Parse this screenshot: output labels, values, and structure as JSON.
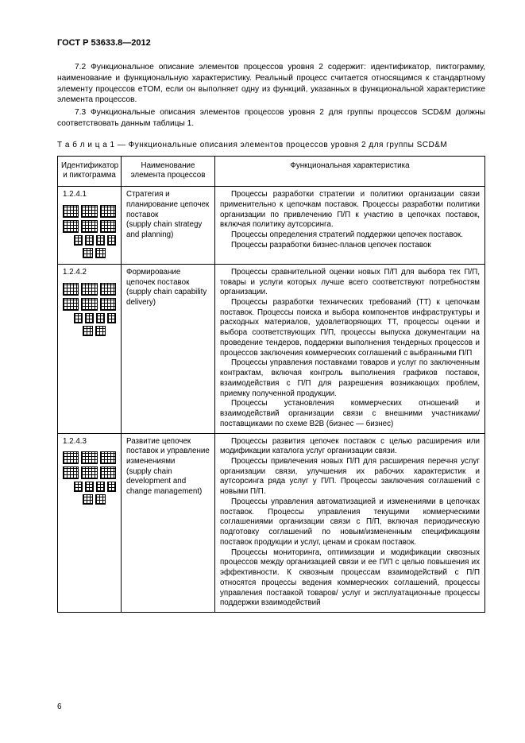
{
  "header": {
    "standard_code": "ГОСТ Р 53633.8—2012"
  },
  "paragraphs": {
    "p72": "7.2 Функциональное описание элементов процессов уровня 2 содержит: идентификатор, пиктограмму, наименование и функциональную характеристику. Реальный процесс считается относящимся к стандартному элементу процессов eTOM, если он выполняет одну из функций, указанных в функциональной характеристике элемента процессов.",
    "p73": "7.3 Функциональные описания элементов процессов уровня 2 для группы процессов SCD&M должны соответствовать данным таблицы 1."
  },
  "table": {
    "caption": "Т а б л и ц а  1 — Функциональные описания элементов процессов уровня 2 для группы SCD&M",
    "headers": {
      "col1": "Идентификатор и пиктограмма",
      "col2": "Наименование элемента процессов",
      "col3": "Функциональная характеристика"
    },
    "rows": [
      {
        "id": "1.2.4.1",
        "name": "Стратегия и планирование цепочек поставок\n(supply chain strategy and planning)",
        "desc": [
          "Процессы разработки стратегии и политики организации связи применительно к цепочкам поставок. Процессы разработки политики организации по привлечению П/П к участию в цепочках поставок, включая политику аутсорсинга.",
          "Процессы определения стратегий поддержки цепочек поставок.",
          "Процессы разработки бизнес-планов цепочек поставок"
        ]
      },
      {
        "id": "1.2.4.2",
        "name": "Формирование цепочек поставок\n(supply chain capability delivery)",
        "desc": [
          "Процессы сравнительной оценки новых П/П для выбора тех П/П, товары и услуги которых лучше всего соответствуют потребностям организации.",
          "Процессы разработки технических требований (ТТ) к цепочкам поставок. Процессы поиска и выбора компонентов инфраструктуры и расходных материалов, удовлетворяющих ТТ, процессы оценки и выбора соответствующих П/П, процессы выпуска документации на проведение тендеров, поддержки выполнения тендерных процессов и процессов заключения коммерческих соглашений с выбранными П/П",
          "Процессы управления поставками товаров и услуг по заключенным контрактам, включая контроль выполнения графиков поставок, взаимодействия с П/П для разрешения возникающих проблем, приемку полученной продукции.",
          "Процессы установления коммерческих отношений и взаимодействий организации связи с внешними участниками/поставщиками по схеме B2B (бизнес — бизнес)"
        ]
      },
      {
        "id": "1.2.4.3",
        "name": "Развитие цепочек поставок и управление изменениями\n(supply chain development and change management)",
        "desc": [
          "Процессы развития цепочек поставок с целью расширения или модификации каталога услуг организации связи.",
          "Процессы привлечения новых П/П для расширения перечня услуг организации связи, улучшения их рабочих характеристик и аутсорсинга ряда услуг у П/П. Процессы заключения соглашений с новыми П/П.",
          "Процессы управления автоматизацией и изменениями в цепочках поставок. Процессы управления текущими коммерческими соглашениями организации связи с П/П, включая периодическую подготовку соглашений по новым/измененным спецификациям поставок продукции и услуг, ценам и срокам поставок.",
          "Процессы мониторинга, оптимизации и модификации сквозных процессов между организацией связи и ее П/П с целью повышения их эффективности. К сквозным процессам взаимодействий с П/П относятся процессы ведения коммерческих соглашений, процессы управления поставкой товаров/ услуг и эксплуатационные процессы поддержки взаимодействий"
        ]
      }
    ]
  },
  "page_number": "6"
}
